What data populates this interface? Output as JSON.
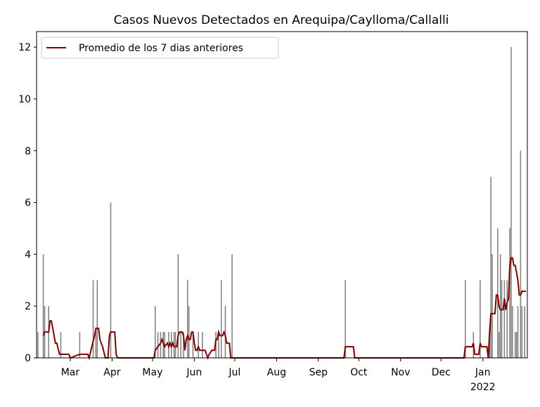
{
  "chart_data": {
    "type": "bar_line",
    "title": "Casos Nuevos Detectados en Arequipa/Caylloma/Callalli",
    "xlim": [
      3,
      367
    ],
    "ylim": [
      0,
      12.6
    ],
    "yticks": [
      0,
      2,
      4,
      6,
      8,
      10,
      12
    ],
    "xticks": [
      {
        "value": 28,
        "label": "Mar"
      },
      {
        "value": 59,
        "label": "Apr"
      },
      {
        "value": 89,
        "label": "May"
      },
      {
        "value": 120,
        "label": "Jun"
      },
      {
        "value": 150,
        "label": "Jul"
      },
      {
        "value": 181,
        "label": "Aug"
      },
      {
        "value": 212,
        "label": "Sep"
      },
      {
        "value": 242,
        "label": "Oct"
      },
      {
        "value": 273,
        "label": "Nov"
      },
      {
        "value": 303,
        "label": "Dec"
      },
      {
        "value": 334,
        "label": "Jan"
      }
    ],
    "xtick_sublabels": [
      {
        "value": 334,
        "label": "2022"
      }
    ],
    "legend": "upper left",
    "bars": {
      "color": "#808080",
      "x": [
        4,
        8,
        9,
        12,
        21,
        35,
        45,
        47,
        48,
        58,
        91,
        93,
        95,
        97,
        98,
        101,
        103,
        105,
        106,
        108,
        110,
        112,
        115,
        116,
        119,
        123,
        126,
        136,
        138,
        140,
        143,
        148,
        232,
        321,
        327,
        332,
        339,
        340,
        341,
        345,
        346,
        347,
        348,
        350,
        352,
        354,
        355,
        356,
        358,
        359,
        360,
        362,
        363,
        365
      ],
      "values": [
        1,
        4,
        2,
        2,
        1,
        1,
        3,
        1,
        3,
        6,
        2,
        1,
        1,
        1,
        1,
        1,
        1,
        1,
        1,
        4,
        1,
        1,
        3,
        2,
        1,
        1,
        1,
        1,
        1,
        3,
        2,
        4,
        3,
        3,
        1,
        3,
        1,
        7,
        4,
        5,
        1,
        4,
        3,
        3,
        3,
        5,
        12,
        2,
        1,
        1,
        2,
        8,
        2,
        2
      ]
    },
    "series": [
      {
        "name": "Promedio de los 7 dias anteriores",
        "color": "#800000",
        "x": [
          8,
          9,
          12,
          13,
          14,
          16,
          17,
          18,
          20,
          27,
          28,
          35,
          41,
          42,
          44,
          46,
          47,
          49,
          50,
          52,
          54,
          56,
          57,
          58,
          61,
          62,
          63,
          90,
          91,
          93,
          95,
          96,
          97,
          98,
          100,
          101,
          102,
          103,
          104,
          105,
          107,
          108,
          109,
          111,
          112,
          113,
          114,
          115,
          116,
          117,
          118,
          119,
          120,
          121,
          122,
          123,
          124,
          128,
          129,
          130,
          131,
          133,
          135,
          136,
          137,
          138,
          139,
          141,
          142,
          143,
          144,
          146,
          147,
          231,
          232,
          238,
          239,
          320,
          321,
          326,
          327,
          328,
          331,
          332,
          333,
          337,
          338,
          339,
          340,
          343,
          344,
          345,
          346,
          347,
          349,
          350,
          351,
          352,
          353,
          354,
          355,
          356,
          357,
          358,
          359,
          360,
          361,
          362,
          363,
          366
        ],
        "values": [
          0.86,
          1,
          1,
          1.43,
          1.43,
          0.86,
          0.57,
          0.57,
          0.14,
          0.14,
          0,
          0.14,
          0.14,
          0,
          0.43,
          0.86,
          1.14,
          1.14,
          0.71,
          0.43,
          0,
          0,
          0.86,
          1,
          1,
          0.14,
          0,
          0,
          0.29,
          0.43,
          0.57,
          0.71,
          0.57,
          0.43,
          0.57,
          0.43,
          0.57,
          0.43,
          0.57,
          0.43,
          0.43,
          0.86,
          1,
          1,
          0.86,
          0.29,
          0.71,
          0.86,
          0.71,
          0.71,
          1,
          1,
          0.57,
          0.29,
          0.29,
          0.43,
          0.29,
          0.29,
          0.14,
          0,
          0.14,
          0.29,
          0.29,
          0.71,
          0.71,
          1,
          0.86,
          0.86,
          1,
          0.86,
          0.57,
          0.57,
          0,
          0,
          0.43,
          0.43,
          0,
          0,
          0.43,
          0.43,
          0.57,
          0.14,
          0.14,
          0.57,
          0.43,
          0.43,
          0,
          1,
          1.71,
          1.71,
          2.43,
          2.43,
          2,
          1.86,
          1.86,
          2.29,
          1.86,
          2.14,
          2.29,
          3.57,
          3.86,
          3.86,
          3.57,
          3.57,
          3.29,
          3,
          2.43,
          2.43,
          2.57,
          2.57
        ]
      }
    ]
  }
}
